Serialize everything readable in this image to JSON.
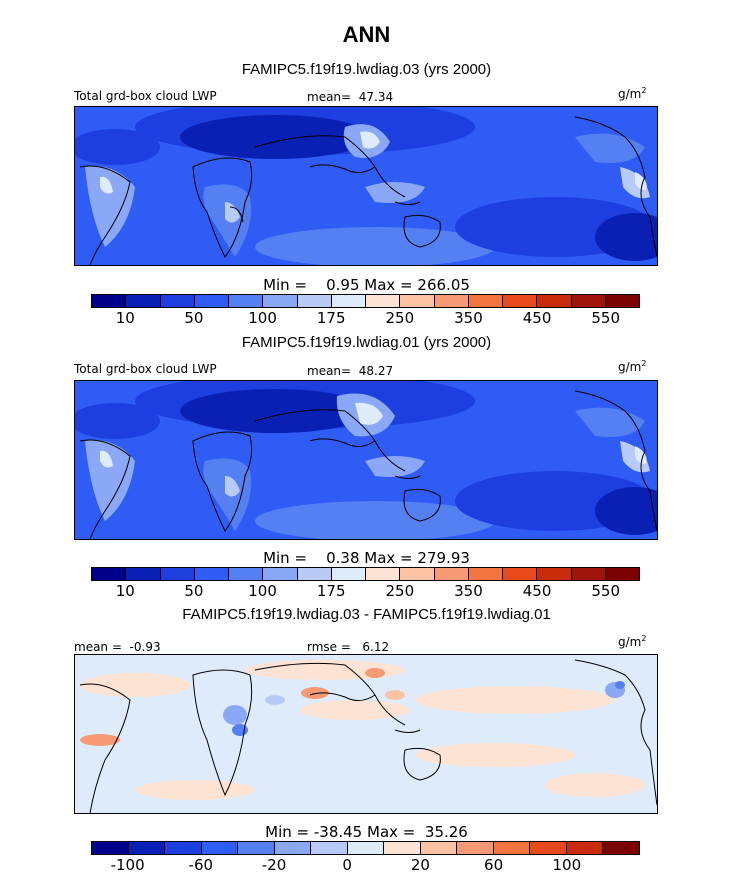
{
  "figure": {
    "title": "ANN",
    "units_label": "g/m",
    "units_exponent": "2"
  },
  "chart_data": [
    {
      "type": "heatmap",
      "title": "FAMIPC5.f19f19.lwdiag.03 (yrs 2000)",
      "variable": "Total grd-box cloud LWP",
      "mean_label": "mean=",
      "mean": "47.34",
      "min_label": "Min =",
      "min": "0.95",
      "max_label": "Max =",
      "max": "266.05",
      "colorbar_ticks": [
        "10",
        "50",
        "100",
        "175",
        "250",
        "350",
        "450",
        "550"
      ],
      "colorbar_colors": [
        "#00008b",
        "#0a1fb4",
        "#1e3fe0",
        "#2e5cf5",
        "#5580f2",
        "#8aa8f5",
        "#b8cbf7",
        "#deebfb",
        "#fde3d3",
        "#fbc2a4",
        "#f79a73",
        "#f2743f",
        "#e64a1a",
        "#c82a0c",
        "#a0150b",
        "#7c0202"
      ]
    },
    {
      "type": "heatmap",
      "title": "FAMIPC5.f19f19.lwdiag.01 (yrs 2000)",
      "variable": "Total grd-box cloud LWP",
      "mean_label": "mean=",
      "mean": "48.27",
      "min_label": "Min =",
      "min": "0.38",
      "max_label": "Max =",
      "max": "279.93",
      "colorbar_ticks": [
        "10",
        "50",
        "100",
        "175",
        "250",
        "350",
        "450",
        "550"
      ],
      "colorbar_colors": [
        "#00008b",
        "#0a1fb4",
        "#1e3fe0",
        "#2e5cf5",
        "#5580f2",
        "#8aa8f5",
        "#b8cbf7",
        "#deebfb",
        "#fde3d3",
        "#fbc2a4",
        "#f79a73",
        "#f2743f",
        "#e64a1a",
        "#c82a0c",
        "#a0150b",
        "#7c0202"
      ]
    },
    {
      "type": "heatmap",
      "title": "FAMIPC5.f19f19.lwdiag.03 - FAMIPC5.f19f19.lwdiag.01",
      "mean_label": "mean =",
      "mean": "-0.93",
      "rmse_label": "rmse =",
      "rmse": "6.12",
      "min_label": "Min =",
      "min": "-38.45",
      "max_label": "Max =",
      "max": "35.26",
      "colorbar_ticks": [
        "-100",
        "-60",
        "-20",
        "0",
        "20",
        "60",
        "100"
      ],
      "colorbar_colors": [
        "#00008b",
        "#0a1fb4",
        "#1e3fe0",
        "#2e5cf5",
        "#5580f2",
        "#8aa8f5",
        "#b8cbf7",
        "#deebfb",
        "#fde3d3",
        "#fbc2a4",
        "#f79a73",
        "#f2743f",
        "#e64a1a",
        "#c82a0c",
        "#7c0202"
      ]
    }
  ]
}
